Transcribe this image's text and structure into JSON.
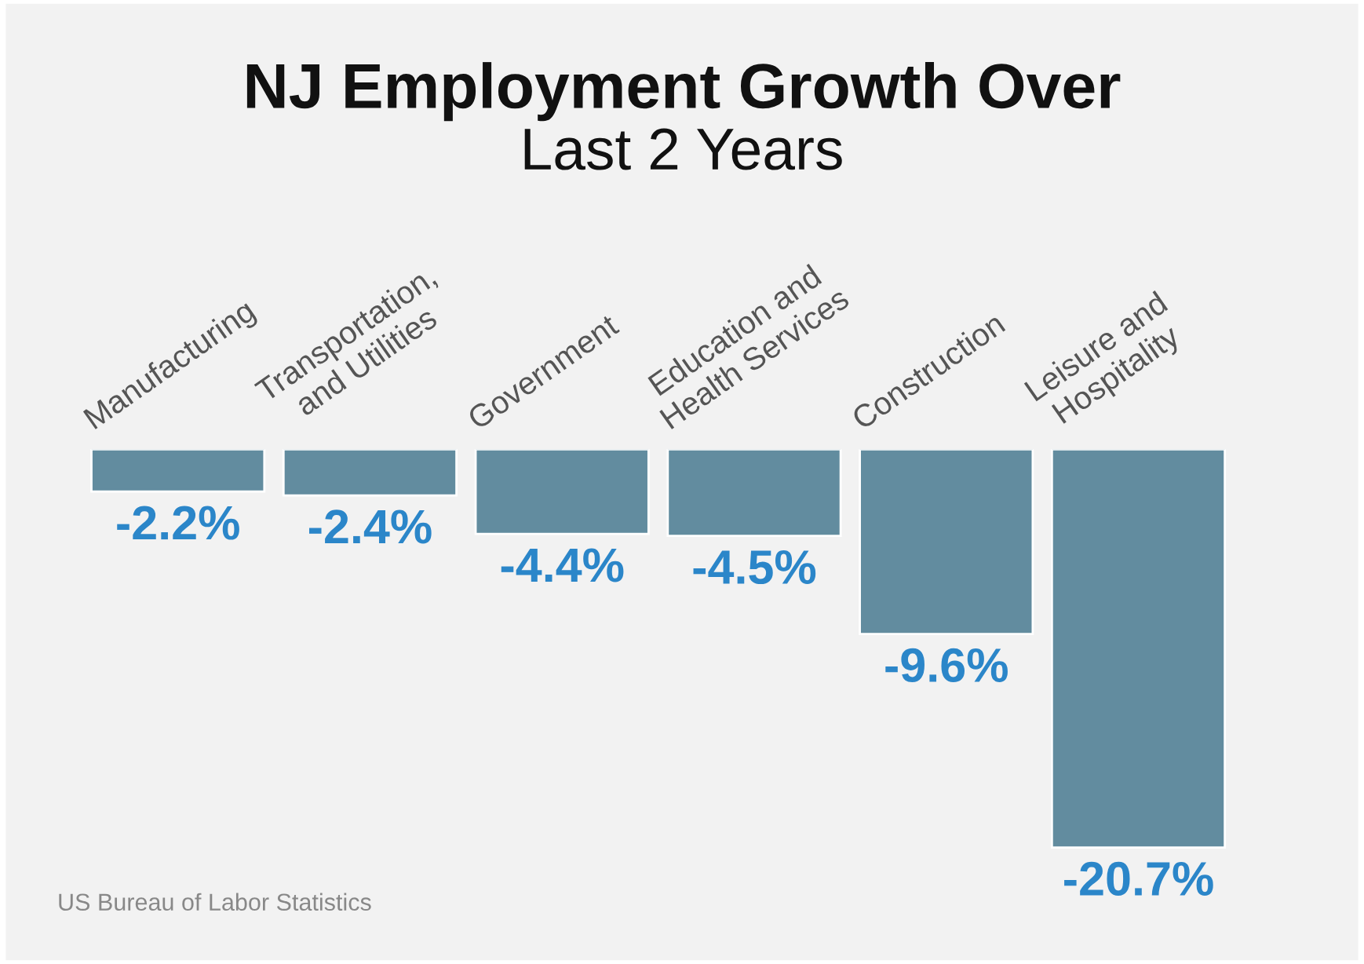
{
  "chart_data": {
    "type": "bar",
    "title": "NJ Employment Growth Over",
    "subtitle": "Last 2 Years",
    "categories": [
      "Manufacturing",
      "Transportation,\nand Utilities",
      "Government",
      "Education and\nHealth Services",
      "Construction",
      "Leisure and\nHospitality"
    ],
    "values": [
      -2.2,
      -2.4,
      -4.4,
      -4.5,
      -9.6,
      -20.7
    ],
    "value_labels": [
      "-2.2%",
      "-2.4%",
      "-4.4%",
      "-4.5%",
      "-9.6%",
      "-20.7%"
    ],
    "color": "#628c9f",
    "tick_labels": false,
    "annotations": [
      "US Bureau of Labor Statistics"
    ]
  }
}
